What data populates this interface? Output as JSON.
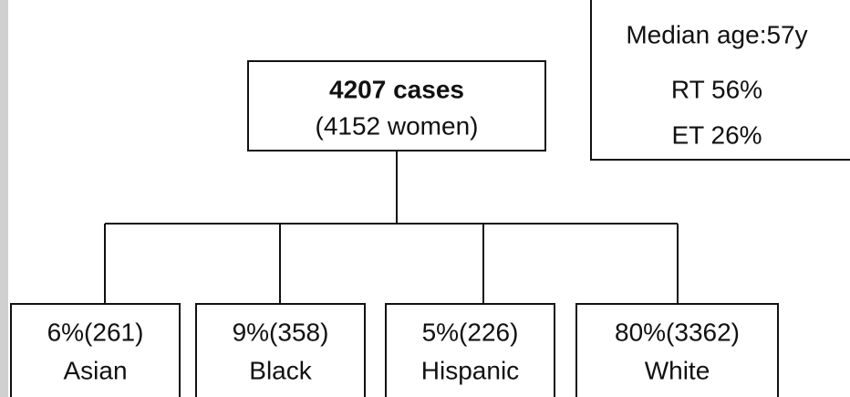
{
  "root": {
    "title": "4207 cases",
    "subtitle": "(4152 women)"
  },
  "info": [
    "Median age:57y",
    "RT 56%",
    "ET 26%"
  ],
  "nodes": [
    {
      "count": "6%(261)",
      "label": "Asian"
    },
    {
      "count": "9%(358)",
      "label": "Black"
    },
    {
      "count": "5%(226)",
      "label": "Hispanic"
    },
    {
      "count": "80%(3362)",
      "label": "White"
    }
  ]
}
